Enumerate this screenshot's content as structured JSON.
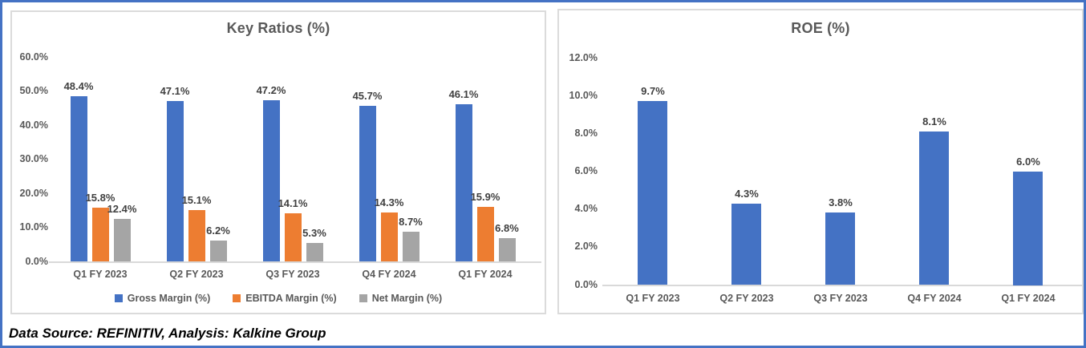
{
  "page": {
    "background": "#ffffff",
    "frame_border_color": "#4472C4",
    "panel_border_color": "#DBDBDB",
    "axis_line_color": "#D9D9D9",
    "title_color": "#595959",
    "tick_label_color": "#595959",
    "data_label_color": "#404040"
  },
  "footer": {
    "source_text": "Data Source: REFINITIV, Analysis: Kalkine Group"
  },
  "chart_data": [
    {
      "type": "bar",
      "title": "Key Ratios (%)",
      "categories": [
        "Q1 FY 2023",
        "Q2 FY 2023",
        "Q3 FY 2023",
        "Q4 FY 2024",
        "Q1 FY 2024"
      ],
      "series": [
        {
          "name": "Gross Margin (%)",
          "color": "#4472C4",
          "values": [
            48.4,
            47.1,
            47.2,
            45.7,
            46.1
          ]
        },
        {
          "name": "EBITDA Margin (%)",
          "color": "#ED7D31",
          "values": [
            15.8,
            15.1,
            14.1,
            14.3,
            15.9
          ]
        },
        {
          "name": "Net Margin (%)",
          "color": "#A5A5A5",
          "values": [
            12.4,
            6.2,
            5.3,
            8.7,
            6.8
          ]
        }
      ],
      "ylim": [
        0,
        60
      ],
      "ytick_step": 10,
      "ytick_labels": [
        "0.0%",
        "10.0%",
        "20.0%",
        "30.0%",
        "40.0%",
        "50.0%",
        "60.0%"
      ],
      "data_label_suffix": "%",
      "legend_position": "bottom",
      "grid": false
    },
    {
      "type": "bar",
      "title": "ROE (%)",
      "categories": [
        "Q1 FY 2023",
        "Q2 FY 2023",
        "Q3 FY 2023",
        "Q4 FY 2024",
        "Q1 FY 2024"
      ],
      "series": [
        {
          "name": "ROE (%)",
          "color": "#4472C4",
          "values": [
            9.7,
            4.3,
            3.8,
            8.1,
            6.0
          ]
        }
      ],
      "ylim": [
        0,
        12
      ],
      "ytick_step": 2,
      "ytick_labels": [
        "0.0%",
        "2.0%",
        "4.0%",
        "6.0%",
        "8.0%",
        "10.0%",
        "12.0%"
      ],
      "data_label_suffix": "%",
      "legend_position": "none",
      "grid": false
    }
  ]
}
